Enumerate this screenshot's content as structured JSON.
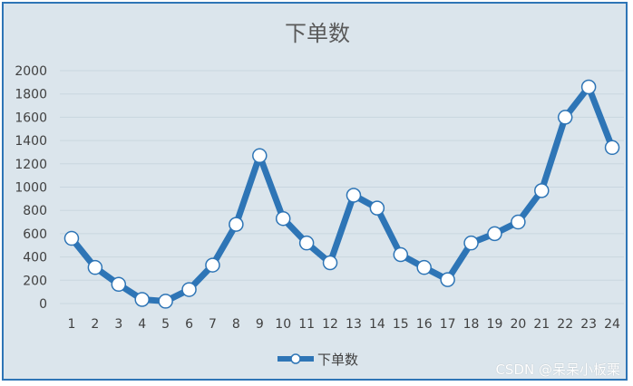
{
  "chart_data": {
    "type": "line",
    "title": "下单数",
    "xlabel": "",
    "ylabel": "",
    "categories": [
      "1",
      "2",
      "3",
      "4",
      "5",
      "6",
      "7",
      "8",
      "9",
      "10",
      "11",
      "12",
      "13",
      "14",
      "15",
      "16",
      "17",
      "18",
      "19",
      "20",
      "21",
      "22",
      "23",
      "24"
    ],
    "series": [
      {
        "name": "下单数",
        "values": [
          560,
          310,
          165,
          35,
          20,
          120,
          330,
          680,
          1270,
          730,
          520,
          350,
          930,
          820,
          420,
          310,
          205,
          520,
          600,
          700,
          970,
          1600,
          1860,
          1340
        ]
      }
    ],
    "yticks": [
      "0",
      "200",
      "400",
      "600",
      "800",
      "1000",
      "1200",
      "1400",
      "1600",
      "1800",
      "2000"
    ],
    "ylim": [
      0,
      2000
    ],
    "grid": true,
    "legend_position": "bottom",
    "colors": {
      "line": "#2e75b6",
      "marker_fill": "#ffffff",
      "background": "#dbe5ec",
      "grid": "#c9d6df"
    }
  },
  "watermark": "CSDN @呆呆小板栗"
}
